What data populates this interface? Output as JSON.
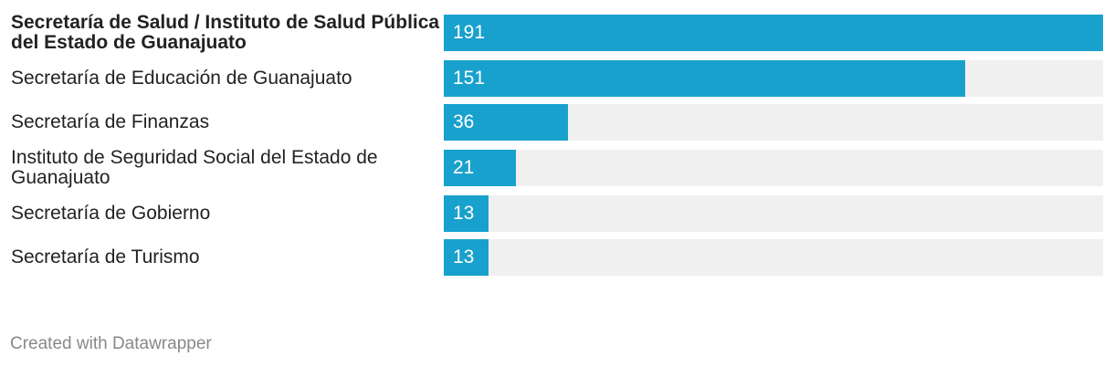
{
  "chart_data": {
    "type": "bar",
    "categories": [
      "Secretaría de Salud / Instituto de Salud Pública del Estado de Guanajuato",
      "Secretaría de Educación de Guanajuato",
      "Secretaría de Finanzas",
      "Instituto de Seguridad Social del Estado de Guanajuato",
      "Secretaría de Gobierno",
      "Secretaría de Turismo"
    ],
    "values": [
      191,
      151,
      36,
      21,
      13,
      13
    ],
    "color": "#18a1cd",
    "credit": "Created with Datawrapper"
  }
}
